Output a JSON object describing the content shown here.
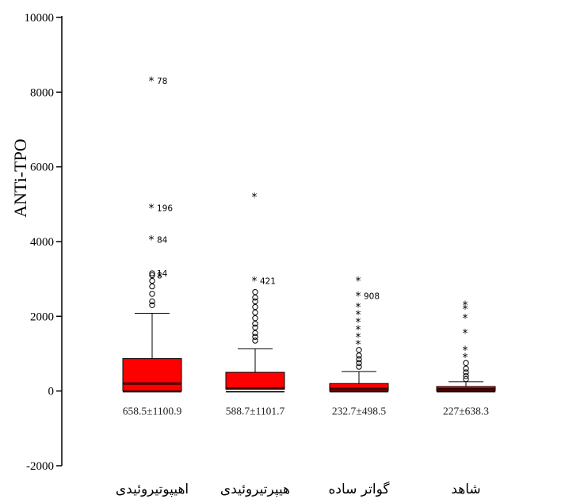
{
  "chart_data": {
    "type": "boxplot",
    "ylabel": "ANTi-TPO",
    "ylim": [
      -2000,
      10000
    ],
    "yticks": [
      -2000,
      0,
      2000,
      4000,
      6000,
      8000,
      10000
    ],
    "grid": false,
    "colors": {
      "box": "#ff0000",
      "median": "#3a0000",
      "axis": "#000000"
    },
    "categories": [
      "اهیپوتیروئیدی",
      "هیپرتیروئیدی",
      "گواتر ساده",
      "شاهد"
    ],
    "stats_text": [
      "658.5±1100.9",
      "588.7±1101.7",
      "232.7±498.5",
      "227±638.3"
    ],
    "boxes": [
      {
        "min": 0,
        "q1": 0,
        "median": 200,
        "q3": 870,
        "max": 2080
      },
      {
        "min": 0,
        "q1": 50,
        "median": 70,
        "q3": 500,
        "max": 1130
      },
      {
        "min": 0,
        "q1": 0,
        "median": 60,
        "q3": 200,
        "max": 520
      },
      {
        "min": 0,
        "q1": 0,
        "median": 50,
        "q3": 120,
        "max": 250
      }
    ],
    "outliers": [
      [
        {
          "y": 8300,
          "kind": "extreme",
          "label": "78"
        },
        {
          "y": 4900,
          "kind": "extreme",
          "label": "196"
        },
        {
          "y": 4050,
          "kind": "extreme",
          "label": "84"
        },
        {
          "y": 3150,
          "kind": "circle",
          "label": "14"
        },
        {
          "y": 3100,
          "kind": "circle",
          "label": "8"
        },
        {
          "y": 2950,
          "kind": "circle"
        },
        {
          "y": 2800,
          "kind": "circle"
        },
        {
          "y": 2600,
          "kind": "circle"
        },
        {
          "y": 2400,
          "kind": "circle"
        },
        {
          "y": 2300,
          "kind": "circle"
        }
      ],
      [
        {
          "y": 5200,
          "kind": "extreme"
        },
        {
          "y": 2950,
          "kind": "extreme",
          "label": "421"
        },
        {
          "y": 2650,
          "kind": "circle"
        },
        {
          "y": 2500,
          "kind": "circle"
        },
        {
          "y": 2400,
          "kind": "circle"
        },
        {
          "y": 2250,
          "kind": "circle"
        },
        {
          "y": 2100,
          "kind": "circle"
        },
        {
          "y": 1950,
          "kind": "circle"
        },
        {
          "y": 1800,
          "kind": "circle"
        },
        {
          "y": 1700,
          "kind": "circle"
        },
        {
          "y": 1550,
          "kind": "circle"
        },
        {
          "y": 1450,
          "kind": "circle"
        },
        {
          "y": 1350,
          "kind": "circle"
        }
      ],
      [
        {
          "y": 2950,
          "kind": "extreme"
        },
        {
          "y": 2550,
          "kind": "extreme",
          "label": "908"
        },
        {
          "y": 2250,
          "kind": "extreme"
        },
        {
          "y": 2050,
          "kind": "extreme"
        },
        {
          "y": 1850,
          "kind": "extreme"
        },
        {
          "y": 1650,
          "kind": "extreme"
        },
        {
          "y": 1450,
          "kind": "extreme"
        },
        {
          "y": 1250,
          "kind": "extreme"
        },
        {
          "y": 1100,
          "kind": "circle"
        },
        {
          "y": 950,
          "kind": "circle"
        },
        {
          "y": 850,
          "kind": "circle"
        },
        {
          "y": 750,
          "kind": "circle"
        },
        {
          "y": 650,
          "kind": "circle"
        }
      ],
      [
        {
          "y": 2300,
          "kind": "extreme"
        },
        {
          "y": 2200,
          "kind": "extreme"
        },
        {
          "y": 1950,
          "kind": "extreme"
        },
        {
          "y": 1550,
          "kind": "extreme"
        },
        {
          "y": 1100,
          "kind": "extreme"
        },
        {
          "y": 900,
          "kind": "extreme"
        },
        {
          "y": 750,
          "kind": "circle"
        },
        {
          "y": 600,
          "kind": "circle"
        },
        {
          "y": 500,
          "kind": "circle"
        },
        {
          "y": 400,
          "kind": "circle"
        },
        {
          "y": 320,
          "kind": "circle"
        }
      ]
    ]
  }
}
